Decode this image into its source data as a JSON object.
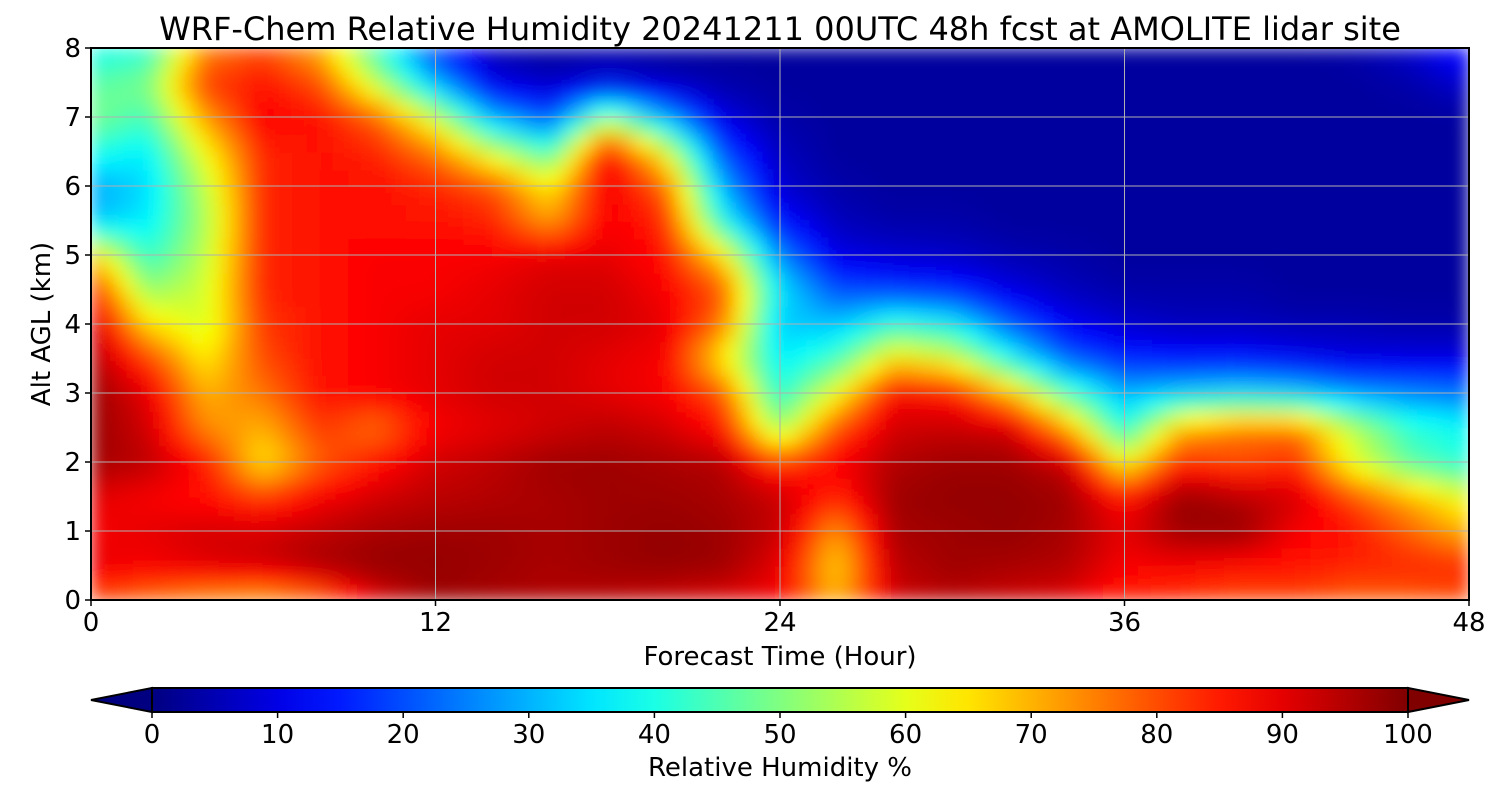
{
  "chart_data": {
    "type": "heatmap",
    "title": "WRF-Chem Relative Humidity 20241211 00UTC 48h fcst at AMOLITE lidar site",
    "xlabel": "Forecast Time (Hour)",
    "ylabel": "Alt AGL (km)",
    "xlim": [
      0,
      48
    ],
    "ylim": [
      0,
      8
    ],
    "xticks": [
      0,
      12,
      24,
      36,
      48
    ],
    "yticks": [
      0,
      1,
      2,
      3,
      4,
      5,
      6,
      7,
      8
    ],
    "grid": true,
    "colormap": "jet",
    "colorbar": {
      "label": "Relative Humidity %",
      "orientation": "horizontal",
      "placement": "bottom",
      "range": [
        0,
        100
      ],
      "ticks": [
        0,
        10,
        20,
        30,
        40,
        50,
        60,
        70,
        80,
        90,
        100
      ],
      "extend": "both"
    },
    "x": [
      0,
      2,
      4,
      6,
      8,
      10,
      12,
      14,
      16,
      18,
      20,
      22,
      24,
      26,
      28,
      30,
      32,
      34,
      36,
      38,
      40,
      42,
      44,
      46,
      48
    ],
    "y": [
      0,
      0.5,
      1,
      1.5,
      2,
      2.5,
      3,
      3.5,
      4,
      4.5,
      5,
      5.5,
      6,
      6.5,
      7,
      7.5,
      8
    ],
    "rh": [
      [
        80,
        76,
        72,
        70,
        75,
        90,
        97,
        96,
        95,
        94,
        92,
        90,
        88,
        70,
        92,
        94,
        92,
        90,
        84,
        82,
        80,
        80,
        78,
        78,
        80
      ],
      [
        90,
        88,
        90,
        92,
        96,
        98,
        98,
        97,
        96,
        97,
        98,
        97,
        90,
        66,
        94,
        97,
        96,
        95,
        88,
        88,
        86,
        86,
        84,
        84,
        84
      ],
      [
        88,
        90,
        92,
        92,
        94,
        96,
        97,
        97,
        96,
        97,
        98,
        97,
        93,
        72,
        96,
        97,
        98,
        96,
        90,
        97,
        98,
        88,
        86,
        78,
        70
      ],
      [
        90,
        88,
        86,
        82,
        88,
        92,
        94,
        95,
        96,
        97,
        97,
        96,
        93,
        84,
        97,
        98,
        98,
        97,
        86,
        98,
        95,
        92,
        80,
        70,
        60
      ],
      [
        97,
        94,
        86,
        64,
        78,
        86,
        92,
        94,
        97,
        97,
        96,
        95,
        82,
        88,
        95,
        97,
        97,
        93,
        62,
        84,
        80,
        83,
        60,
        46,
        40
      ],
      [
        98,
        92,
        74,
        70,
        82,
        76,
        88,
        90,
        92,
        94,
        92,
        86,
        52,
        80,
        92,
        93,
        92,
        72,
        40,
        70,
        76,
        76,
        56,
        42,
        38
      ],
      [
        98,
        90,
        70,
        76,
        86,
        88,
        90,
        92,
        92,
        90,
        88,
        80,
        40,
        62,
        88,
        86,
        70,
        46,
        30,
        34,
        36,
        34,
        28,
        26,
        24
      ],
      [
        96,
        82,
        64,
        80,
        86,
        88,
        90,
        92,
        92,
        90,
        88,
        64,
        36,
        44,
        66,
        60,
        40,
        22,
        16,
        14,
        14,
        12,
        10,
        10,
        10
      ],
      [
        94,
        66,
        58,
        82,
        86,
        88,
        90,
        90,
        92,
        92,
        90,
        76,
        32,
        32,
        42,
        38,
        22,
        12,
        8,
        6,
        6,
        5,
        5,
        4,
        4
      ],
      [
        86,
        52,
        58,
        84,
        86,
        88,
        88,
        90,
        92,
        92,
        88,
        80,
        36,
        20,
        18,
        16,
        10,
        6,
        4,
        4,
        4,
        3,
        3,
        3,
        3
      ],
      [
        68,
        42,
        56,
        84,
        86,
        88,
        88,
        88,
        90,
        90,
        86,
        66,
        26,
        10,
        8,
        7,
        5,
        4,
        3,
        3,
        3,
        3,
        3,
        3,
        3
      ],
      [
        32,
        36,
        54,
        84,
        86,
        86,
        86,
        84,
        72,
        88,
        84,
        40,
        14,
        6,
        4,
        4,
        3,
        3,
        3,
        3,
        3,
        3,
        3,
        3,
        3
      ],
      [
        28,
        34,
        56,
        84,
        86,
        86,
        84,
        80,
        64,
        90,
        78,
        30,
        8,
        4,
        3,
        3,
        3,
        3,
        3,
        3,
        3,
        3,
        3,
        3,
        3
      ],
      [
        40,
        36,
        62,
        84,
        86,
        84,
        76,
        58,
        44,
        88,
        62,
        20,
        6,
        3,
        3,
        3,
        3,
        3,
        3,
        3,
        3,
        3,
        3,
        3,
        3
      ],
      [
        50,
        44,
        72,
        88,
        86,
        78,
        58,
        30,
        20,
        52,
        30,
        10,
        4,
        3,
        3,
        3,
        3,
        3,
        3,
        3,
        3,
        3,
        3,
        3,
        3
      ],
      [
        46,
        50,
        82,
        86,
        80,
        56,
        30,
        10,
        6,
        10,
        6,
        4,
        3,
        3,
        3,
        3,
        3,
        3,
        3,
        3,
        3,
        3,
        3,
        4,
        8
      ],
      [
        38,
        40,
        74,
        80,
        70,
        42,
        18,
        5,
        3,
        3,
        3,
        3,
        3,
        3,
        3,
        3,
        3,
        3,
        3,
        3,
        3,
        3,
        4,
        8,
        16
      ]
    ]
  },
  "colors": {
    "axis": "#000000",
    "grid": "#b0b0b0",
    "background": "#ffffff"
  }
}
